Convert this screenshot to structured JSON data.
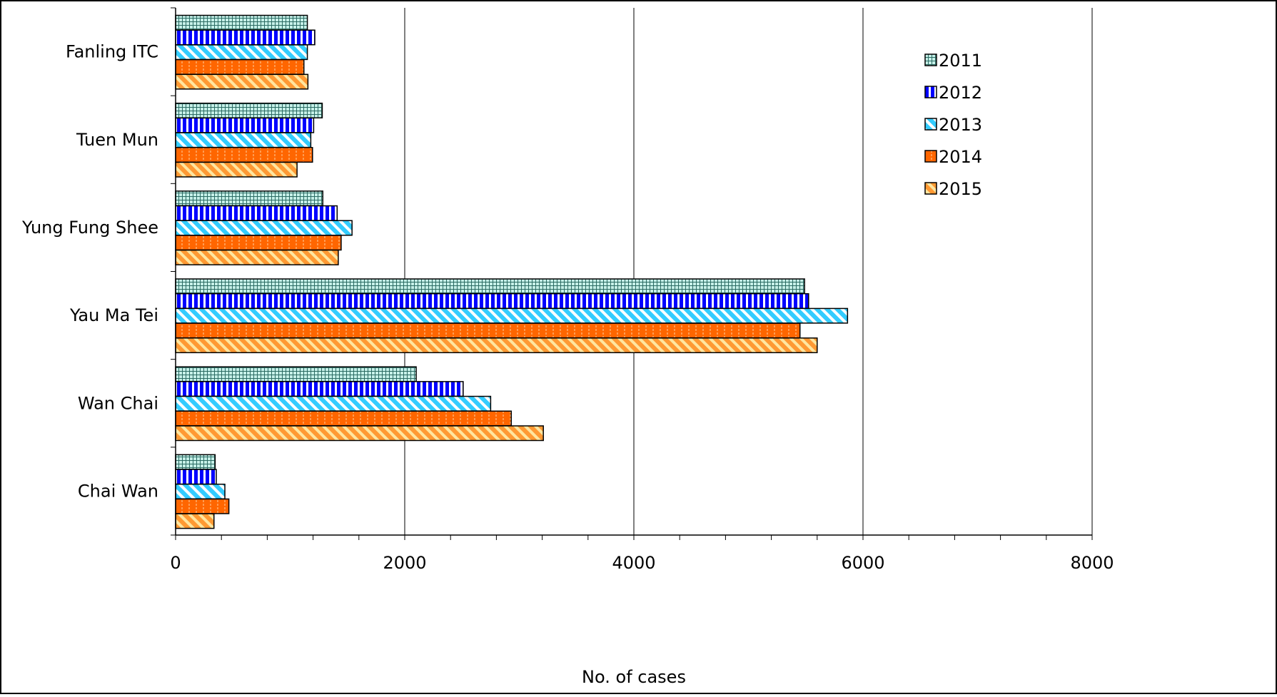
{
  "chart_data": {
    "type": "bar",
    "orientation": "horizontal",
    "categories": [
      "Fanling ITC",
      "Tuen Mun",
      "Yung Fung Shee",
      "Yau Ma Tei",
      "Wan Chai",
      "Chai Wan"
    ],
    "series": [
      {
        "name": "2011",
        "values": [
          1150,
          1280,
          1285,
          5490,
          2100,
          345
        ],
        "color": "#c6f0e8",
        "pattern": "grid"
      },
      {
        "name": "2012",
        "values": [
          1215,
          1205,
          1410,
          5525,
          2510,
          355
        ],
        "color": "#0000ff",
        "pattern": "vertical-stripes"
      },
      {
        "name": "2013",
        "values": [
          1150,
          1180,
          1540,
          5865,
          2750,
          430
        ],
        "color": "#33ccff",
        "pattern": "diagonal-stripes"
      },
      {
        "name": "2014",
        "values": [
          1120,
          1195,
          1445,
          5450,
          2930,
          465
        ],
        "color": "#ff6600",
        "pattern": "dashed-vertical"
      },
      {
        "name": "2015",
        "values": [
          1155,
          1060,
          1420,
          5600,
          3210,
          335
        ],
        "color": "#ff9933",
        "pattern": "diagonal-stripes-light"
      }
    ],
    "x_ticks": [
      "0",
      "2000",
      "4000",
      "6000",
      "8000"
    ],
    "xlim": [
      0,
      8000
    ],
    "xlabel": "No. of cases",
    "ylabel": "",
    "grid": "vertical major gridlines",
    "legend_position": "right"
  }
}
